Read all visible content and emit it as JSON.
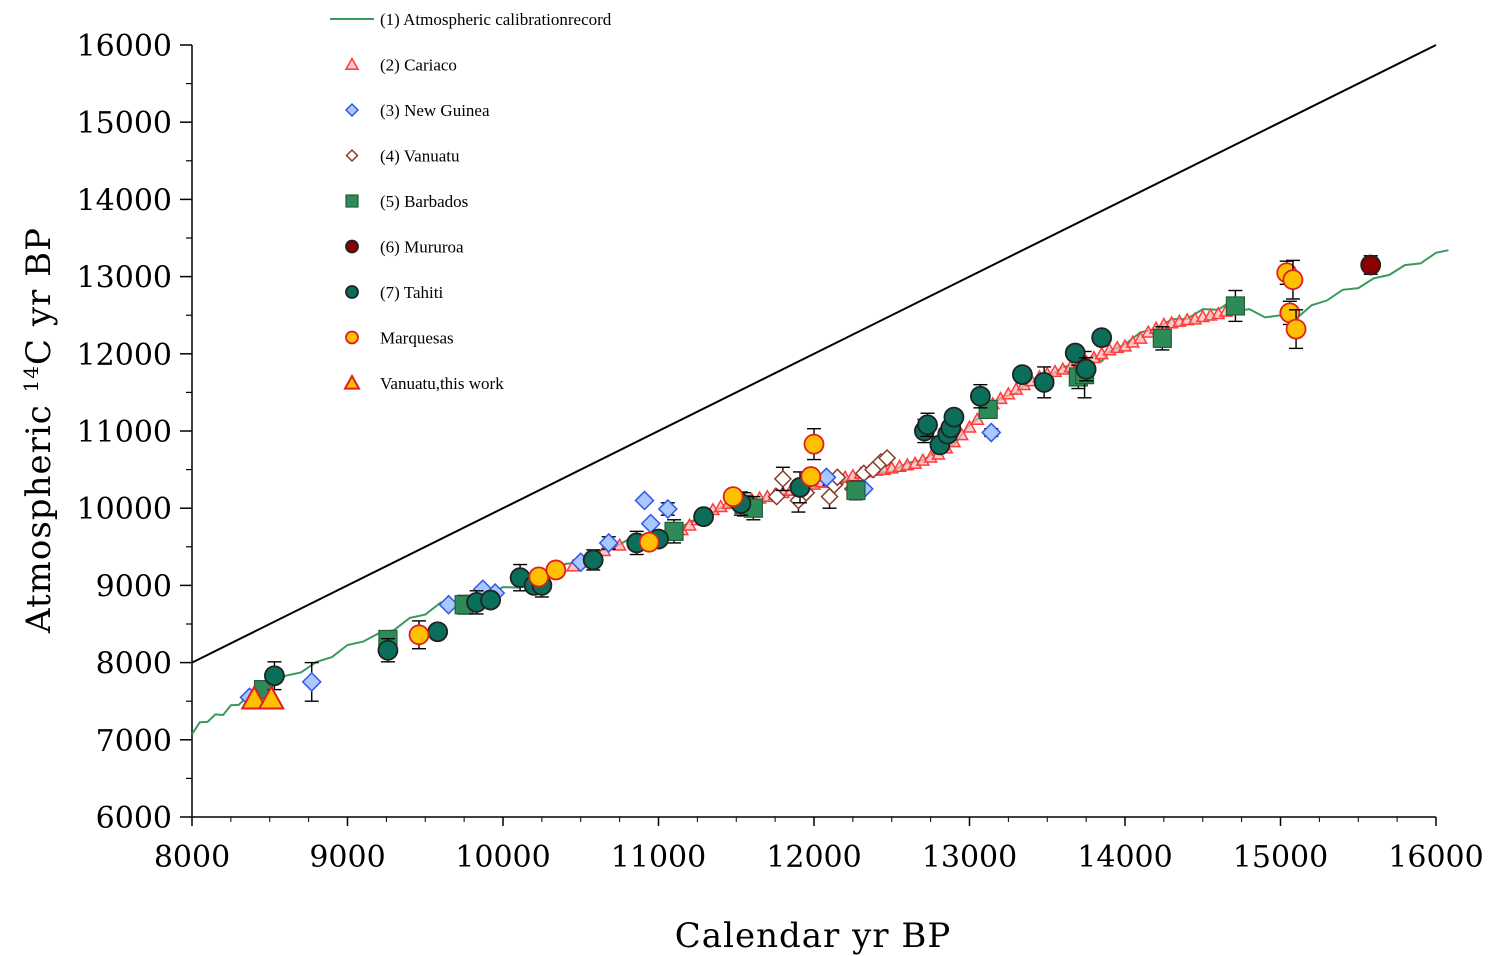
{
  "chart_data": {
    "type": "scatter",
    "xlabel": "Calendar yr BP",
    "ylabel": "Atmospheric ",
    "ylabel_sup": "14",
    "ylabel_rest": "C yr BP",
    "xlim": [
      8000,
      16000
    ],
    "ylim": [
      6000,
      16000
    ],
    "xticks": [
      "8000",
      "9000",
      "10000",
      "11000",
      "12000",
      "13000",
      "14000",
      "15000",
      "16000"
    ],
    "yticks": [
      "6000",
      "7000",
      "8000",
      "9000",
      "10000",
      "11000",
      "12000",
      "13000",
      "14000",
      "15000",
      "16000"
    ],
    "grid": false,
    "legend_position": "top-left",
    "colors": {
      "calibration": "#3a9a5e",
      "cariaco": "#ff3b3b",
      "new_guinea": "#3355ee",
      "vanuatu": "#8b3a2a",
      "barbados": "#2e8b57",
      "mururoa": "#8b0000",
      "tahiti": "#0b6e5a",
      "marquesas": "#ffc000",
      "vanuatu_this": "#ffc000"
    },
    "series": [
      {
        "key": "calibration",
        "name": "(1) Atmospheric calibrationrecord",
        "marker": "line",
        "x": [
          8000,
          8050,
          8100,
          8150,
          8200,
          8250,
          8300,
          8350,
          8400,
          8450,
          8500,
          8600,
          8700,
          8800,
          8900,
          9000,
          9100,
          9200,
          9300,
          9400,
          9500,
          9600,
          9700,
          9800,
          9900,
          10000,
          10100,
          10200,
          10300,
          10400,
          10500,
          10600,
          10700,
          10800,
          10900,
          11000,
          11100,
          11200,
          11300,
          11400,
          11500,
          11600,
          11700,
          11800,
          11900,
          12000,
          12100,
          12200,
          12300,
          12400,
          12500,
          12600,
          12700,
          12800,
          12900,
          13000,
          13100,
          13200,
          13300,
          13400,
          13500,
          13600,
          13700,
          13800,
          13850,
          13900,
          14000,
          14100,
          14200,
          14300,
          14400,
          14500,
          14600,
          14650,
          14700,
          14800,
          14900,
          15000,
          15100,
          15200,
          15300,
          15400,
          15500,
          15600,
          15700,
          15800,
          15900,
          16000,
          16080
        ],
        "y": [
          7100,
          7200,
          7260,
          7300,
          7350,
          7420,
          7480,
          7520,
          7580,
          7620,
          7700,
          7800,
          7900,
          7980,
          8100,
          8200,
          8300,
          8350,
          8450,
          8550,
          8650,
          8750,
          8800,
          8850,
          8900,
          8950,
          9000,
          9050,
          9150,
          9250,
          9330,
          9420,
          9500,
          9560,
          9600,
          9640,
          9700,
          9800,
          9900,
          9980,
          10050,
          10100,
          10120,
          10150,
          10200,
          10250,
          10300,
          10330,
          10380,
          10430,
          10500,
          10560,
          10650,
          10720,
          10850,
          11050,
          11250,
          11400,
          11520,
          11650,
          11720,
          11800,
          11900,
          11950,
          11930,
          12000,
          12150,
          12250,
          12350,
          12420,
          12480,
          12550,
          12600,
          12610,
          12580,
          12550,
          12500,
          12470,
          12480,
          12600,
          12720,
          12800,
          12880,
          12950,
          13050,
          13120,
          13200,
          13280,
          13370
        ]
      },
      {
        "key": "cariaco",
        "name": "(2) Cariaco",
        "marker": "triangle",
        "x": [
          10450,
          10550,
          10650,
          10750,
          10850,
          10950,
          11050,
          11150,
          11200,
          11250,
          11300,
          11350,
          11400,
          11450,
          11500,
          11550,
          11600,
          11650,
          11700,
          11750,
          11800,
          11850,
          11900,
          11950,
          12000,
          12050,
          12100,
          12150,
          12200,
          12250,
          12300,
          12350,
          12400,
          12450,
          12500,
          12550,
          12600,
          12650,
          12700,
          12750,
          12800,
          12850,
          12900,
          12950,
          13000,
          13050,
          13100,
          13150,
          13200,
          13250,
          13300,
          13350,
          13400,
          13450,
          13500,
          13550,
          13600,
          13650,
          13700,
          13750,
          13800,
          13850,
          13900,
          13950,
          14000,
          14050,
          14100,
          14150,
          14200,
          14250,
          14300,
          14350,
          14400,
          14450,
          14500,
          14550,
          14600,
          14650
        ],
        "y": [
          9250,
          9350,
          9450,
          9520,
          9580,
          9600,
          9650,
          9720,
          9780,
          9850,
          9920,
          9980,
          10020,
          10060,
          10080,
          10100,
          10110,
          10130,
          10150,
          10180,
          10200,
          10230,
          10260,
          10290,
          10310,
          10340,
          10360,
          10380,
          10400,
          10420,
          10450,
          10470,
          10490,
          10500,
          10520,
          10540,
          10560,
          10580,
          10620,
          10660,
          10700,
          10780,
          10860,
          10950,
          11050,
          11150,
          11250,
          11350,
          11420,
          11480,
          11540,
          11600,
          11650,
          11700,
          11740,
          11770,
          11800,
          11830,
          11850,
          11900,
          11950,
          12000,
          12050,
          12080,
          12100,
          12150,
          12200,
          12280,
          12330,
          12380,
          12400,
          12420,
          12440,
          12450,
          12480,
          12500,
          12520,
          12550
        ]
      },
      {
        "key": "new_guinea",
        "name": "(3) New Guinea",
        "marker": "diamond",
        "x": [
          8370,
          8770,
          9650,
          9870,
          9950,
          10500,
          10680,
          10910,
          10950,
          11060,
          12080,
          12320,
          13140
        ],
        "y": [
          7550,
          7750,
          8750,
          8950,
          8900,
          9300,
          9550,
          10100,
          9800,
          9990,
          10400,
          10250,
          10980
        ],
        "yerr": [
          0,
          250,
          0,
          0,
          0,
          0,
          80,
          0,
          0,
          80,
          0,
          0,
          50
        ]
      },
      {
        "key": "vanuatu",
        "name": "(4) Vanuatu",
        "marker": "diamond-open",
        "x": [
          11760,
          11800,
          11900,
          11950,
          12100,
          12130,
          12150,
          12250,
          12320,
          12380,
          12430,
          12470
        ],
        "y": [
          10150,
          10380,
          10100,
          10200,
          10150,
          10300,
          10400,
          10250,
          10450,
          10500,
          10600,
          10650
        ],
        "yerr": [
          0,
          150,
          150,
          0,
          150,
          0,
          0,
          0,
          0,
          0,
          0,
          0
        ]
      },
      {
        "key": "barbados",
        "name": "(5) Barbados",
        "marker": "square",
        "x": [
          8460,
          9260,
          9750,
          11100,
          11550,
          11610,
          12270,
          13120,
          13700,
          13740,
          14240,
          14710
        ],
        "y": [
          7650,
          8300,
          8750,
          9700,
          10050,
          10000,
          10230,
          11280,
          11700,
          11730,
          12200,
          12620
        ],
        "yerr": [
          0,
          0,
          120,
          150,
          150,
          150,
          120,
          0,
          150,
          300,
          150,
          200
        ]
      },
      {
        "key": "mururoa",
        "name": "(6) Mururoa",
        "marker": "circle",
        "x": [
          15580
        ],
        "y": [
          13150
        ],
        "yerr": [
          120
        ]
      },
      {
        "key": "tahiti",
        "name": "(7) Tahiti",
        "marker": "circle",
        "x": [
          8530,
          9260,
          9580,
          9830,
          9920,
          10110,
          10200,
          10250,
          10580,
          10860,
          11000,
          11290,
          11530,
          11910,
          12710,
          12730,
          12810,
          12860,
          12880,
          12900,
          13070,
          13340,
          13480,
          13680,
          13750,
          13850
        ],
        "y": [
          7830,
          8160,
          8400,
          8780,
          8810,
          9100,
          9000,
          9000,
          9330,
          9550,
          9600,
          9890,
          10060,
          10270,
          11000,
          11080,
          10820,
          10960,
          11040,
          11180,
          11450,
          11730,
          11630,
          12010,
          11800,
          12210
        ],
        "yerr": [
          180,
          150,
          0,
          150,
          0,
          170,
          0,
          150,
          130,
          150,
          0,
          0,
          150,
          200,
          150,
          150,
          0,
          0,
          0,
          0,
          150,
          0,
          200,
          0,
          150,
          0
        ]
      },
      {
        "key": "marquesas",
        "name": "Marquesas",
        "marker": "circle",
        "x": [
          9460,
          10230,
          10340,
          10940,
          11480,
          11980,
          12000,
          15040,
          15060,
          15080,
          15100
        ],
        "y": [
          8360,
          9110,
          9200,
          9560,
          10150,
          10410,
          10830,
          13050,
          12530,
          12960,
          12320
        ],
        "yerr": [
          180,
          0,
          0,
          0,
          0,
          0,
          200,
          150,
          150,
          250,
          250
        ]
      },
      {
        "key": "vanuatu_this",
        "name": "Vanuatu,this work",
        "marker": "triangle-filled",
        "x": [
          8400,
          8510
        ],
        "y": [
          7530,
          7530
        ],
        "yerr": [
          0,
          0
        ]
      }
    ],
    "reference_line": {
      "x": [
        8000,
        16000
      ],
      "y": [
        8000,
        16000
      ]
    }
  }
}
